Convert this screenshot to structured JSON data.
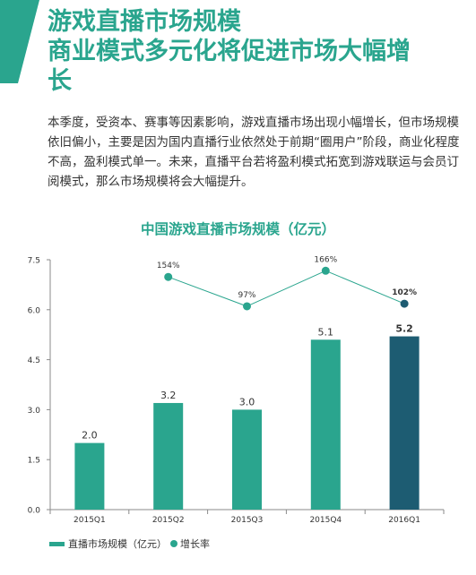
{
  "headline": {
    "line1": "游戏直播市场规模",
    "line2": "商业模式多元化将促进市场大幅增",
    "line3": "长"
  },
  "body_text": "本季度，受资本、赛事等因素影响，游戏直播市场出现小幅增长，但市场规模依旧偏小，主要是因为国内直播行业依然处于前期“圈用户”阶段，商业化程度不高，盈利模式单一。未来，直播平台若将盈利模式拓宽到游戏联运与会员订阅模式，那么市场规模将会大幅提升。",
  "colors": {
    "teal": "#2aa58e",
    "dark_teal": "#1d5c72",
    "text": "#333333"
  },
  "chart_data": {
    "type": "bar",
    "title": "中国游戏直播市场规模（亿元）",
    "categories": [
      "2015Q1",
      "2015Q2",
      "2015Q3",
      "2015Q4",
      "2016Q1"
    ],
    "series": [
      {
        "name": "直播市场规模（亿元）",
        "values": [
          2.0,
          3.2,
          3.0,
          5.1,
          5.2
        ],
        "labels": [
          "2.0",
          "3.2",
          "3.0",
          "5.1",
          "5.2"
        ],
        "highlight_index": 4
      },
      {
        "name": "增长率",
        "type": "line",
        "values": [
          null,
          154,
          97,
          166,
          102
        ],
        "labels": [
          "",
          "154%",
          "97%",
          "166%",
          "102%"
        ],
        "unit": "%"
      }
    ],
    "y_ticks": [
      "0.0",
      "1.5",
      "3.0",
      "4.5",
      "6.0",
      "7.5"
    ],
    "ylim": [
      0,
      7.5
    ],
    "legend": [
      "直播市场规模（亿元）",
      "增长率"
    ],
    "legend_position": "bottom-left",
    "grid": false
  }
}
